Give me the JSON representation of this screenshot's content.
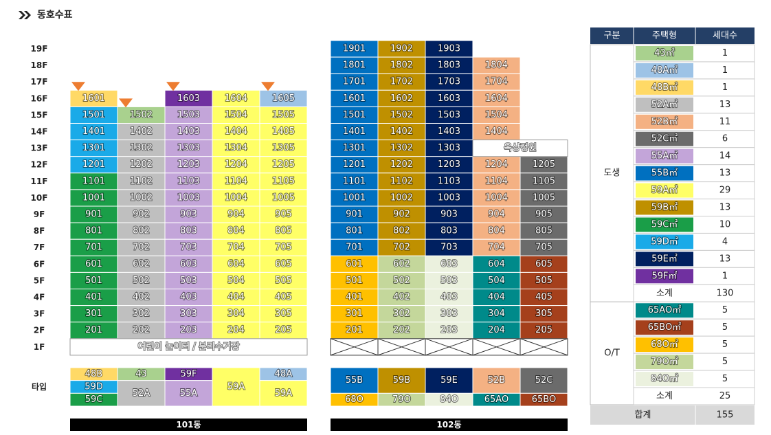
{
  "header": {
    "title": "동호수표"
  },
  "floors": [
    "19F",
    "18F",
    "17F",
    "16F",
    "15F",
    "14F",
    "13F",
    "12F",
    "11F",
    "10F",
    "9F",
    "8F",
    "7F",
    "6F",
    "5F",
    "4F",
    "3F",
    "2F",
    "1F"
  ],
  "type_label": "타입",
  "buildings": [
    {
      "name": "101동",
      "ground_label": "어린이 놀이터 / 분리수거장",
      "columns": [
        {
          "marked": true,
          "segments": [
            {
              "color": "#ffd966",
              "units": [
                "1601"
              ]
            },
            {
              "color": "#1aaae8",
              "units": [
                "1501",
                "1401",
                "1301",
                "1201"
              ]
            },
            {
              "color": "#1a9e48",
              "units": [
                "1101",
                "1001",
                "901",
                "801",
                "701",
                "601",
                "501",
                "401",
                "301",
                "201"
              ]
            }
          ],
          "types": [
            {
              "label": "48B",
              "color": "#ffd966"
            },
            {
              "label": "59D",
              "color": "#1aaae8"
            },
            {
              "label": "59C",
              "color": "#1a9e48"
            }
          ]
        },
        {
          "marked": true,
          "segments": [
            {
              "color": "#a9d18e",
              "units": [
                "1502"
              ]
            },
            {
              "color": "#bfbfbf",
              "units": [
                "1402",
                "1302",
                "1202",
                "1102",
                "1002",
                "902",
                "802",
                "702",
                "602",
                "502",
                "402",
                "302",
                "202"
              ]
            }
          ],
          "types": [
            {
              "label": "43",
              "color": "#a9d18e"
            },
            {
              "label": "52A",
              "color": "#bfbfbf"
            }
          ]
        },
        {
          "marked": true,
          "segments": [
            {
              "color": "#7030a0",
              "units": [
                "1603"
              ]
            },
            {
              "color": "#c3a5d9",
              "units": [
                "1503",
                "1403",
                "1303",
                "1203",
                "1103",
                "1003",
                "903",
                "803",
                "703",
                "603",
                "503",
                "403",
                "303",
                "203"
              ]
            }
          ],
          "types": [
            {
              "label": "59F",
              "color": "#7030a0"
            },
            {
              "label": "55A",
              "color": "#c3a5d9"
            }
          ]
        },
        {
          "marked": false,
          "segments": [
            {
              "color": "#ffff66",
              "units": [
                "1604",
                "1504",
                "1404",
                "1304",
                "1204",
                "1104",
                "1004",
                "904",
                "804",
                "704",
                "604",
                "504",
                "404",
                "304",
                "204"
              ]
            }
          ],
          "types": [
            {
              "label": "59A",
              "color": "#ffff66"
            }
          ]
        },
        {
          "marked": true,
          "segments": [
            {
              "color": "#9dc3e6",
              "units": [
                "1605"
              ]
            },
            {
              "color": "#ffff66",
              "units": [
                "1505",
                "1405",
                "1305",
                "1205",
                "1105",
                "1005",
                "905",
                "805",
                "705",
                "605",
                "505",
                "405",
                "305",
                "205"
              ]
            }
          ],
          "types": [
            {
              "label": "48A",
              "color": "#9dc3e6"
            },
            {
              "label": "59A",
              "color": "#ffff66"
            }
          ]
        }
      ]
    },
    {
      "name": "102동",
      "rooftop_garden": "옥상정원",
      "columns": [
        {
          "marked": false,
          "segments": [
            {
              "color": "#0070c0",
              "units": [
                "1901",
                "1801",
                "1701",
                "1601",
                "1501",
                "1401",
                "1301",
                "1201",
                "1101",
                "1001",
                "901",
                "801",
                "701"
              ]
            },
            {
              "color": "#ffc000",
              "units": [
                "601",
                "501",
                "401",
                "301",
                "201"
              ]
            }
          ],
          "types": [
            {
              "label": "55B",
              "color": "#0070c0"
            },
            {
              "label": "68O",
              "color": "#ffc000"
            }
          ]
        },
        {
          "marked": false,
          "segments": [
            {
              "color": "#bf9000",
              "units": [
                "1902",
                "1802",
                "1702",
                "1602",
                "1502",
                "1402",
                "1302",
                "1202",
                "1102",
                "1002",
                "902",
                "802",
                "702"
              ]
            },
            {
              "color": "#c4d79b",
              "units": [
                "602",
                "502",
                "402",
                "302",
                "202"
              ]
            }
          ],
          "types": [
            {
              "label": "59B",
              "color": "#bf9000"
            },
            {
              "label": "79O",
              "color": "#c4d79b"
            }
          ]
        },
        {
          "marked": false,
          "segments": [
            {
              "color": "#002060",
              "units": [
                "1903",
                "1803",
                "1703",
                "1603",
                "1503",
                "1403",
                "1303",
                "1203",
                "1103",
                "1003",
                "903",
                "803",
                "703"
              ]
            },
            {
              "color": "#ebf1de",
              "units": [
                "603",
                "503",
                "403",
                "303",
                "203"
              ]
            }
          ],
          "types": [
            {
              "label": "59E",
              "color": "#002060"
            },
            {
              "label": "84O",
              "color": "#ebf1de"
            }
          ]
        },
        {
          "marked": false,
          "segments": [
            {
              "color": "#f4b183",
              "units": [
                "1804",
                "1704",
                "1604",
                "1504",
                "1404"
              ]
            },
            {
              "color": "#f4b183",
              "units": [
                "1204",
                "1104",
                "1004",
                "904",
                "804",
                "704"
              ]
            },
            {
              "color": "#008a8a",
              "units": [
                "604",
                "504",
                "404",
                "304",
                "204"
              ]
            }
          ],
          "types": [
            {
              "label": "52B",
              "color": "#f4b183"
            },
            {
              "label": "65AO",
              "color": "#008a8a"
            }
          ]
        },
        {
          "marked": false,
          "segments": [
            {
              "color": "#6b6b6b",
              "units": [
                "1205",
                "1105",
                "1005",
                "905",
                "805",
                "705"
              ]
            },
            {
              "color": "#a5401c",
              "units": [
                "605",
                "505",
                "405",
                "305",
                "205"
              ]
            }
          ],
          "types": [
            {
              "label": "52C",
              "color": "#6b6b6b"
            },
            {
              "label": "65BO",
              "color": "#a5401c"
            }
          ]
        }
      ]
    }
  ],
  "table": {
    "columns": [
      "구분",
      "주택형",
      "세대수"
    ],
    "groups": [
      {
        "name": "도생",
        "rows": [
          {
            "type": "43㎡",
            "color": "#a9d18e",
            "count": 1
          },
          {
            "type": "48A㎡",
            "color": "#9dc3e6",
            "count": 1
          },
          {
            "type": "48B㎡",
            "color": "#ffd966",
            "count": 1
          },
          {
            "type": "52A㎡",
            "color": "#bfbfbf",
            "count": 13
          },
          {
            "type": "52B㎡",
            "color": "#f4b183",
            "count": 11
          },
          {
            "type": "52C㎡",
            "color": "#6b6b6b",
            "count": 6
          },
          {
            "type": "55A㎡",
            "color": "#c3a5d9",
            "count": 14
          },
          {
            "type": "55B㎡",
            "color": "#0070c0",
            "count": 13
          },
          {
            "type": "59A㎡",
            "color": "#ffff66",
            "count": 29
          },
          {
            "type": "59B㎡",
            "color": "#bf9000",
            "count": 13
          },
          {
            "type": "59C㎡",
            "color": "#1a9e48",
            "count": 10
          },
          {
            "type": "59D㎡",
            "color": "#1aaae8",
            "count": 4
          },
          {
            "type": "59E㎡",
            "color": "#002060",
            "count": 13
          },
          {
            "type": "59F㎡",
            "color": "#7030a0",
            "count": 1
          }
        ],
        "subtotal_label": "소계",
        "subtotal": 130
      },
      {
        "name": "O/T",
        "rows": [
          {
            "type": "65AO㎡",
            "color": "#008a8a",
            "count": 5
          },
          {
            "type": "65BO㎡",
            "color": "#a5401c",
            "count": 5
          },
          {
            "type": "68O㎡",
            "color": "#ffc000",
            "count": 5
          },
          {
            "type": "79O㎡",
            "color": "#c4d79b",
            "count": 5
          },
          {
            "type": "84O㎡",
            "color": "#ebf1de",
            "count": 5
          }
        ],
        "subtotal_label": "소계",
        "subtotal": 25
      }
    ],
    "total_label": "합계",
    "total": 155
  }
}
